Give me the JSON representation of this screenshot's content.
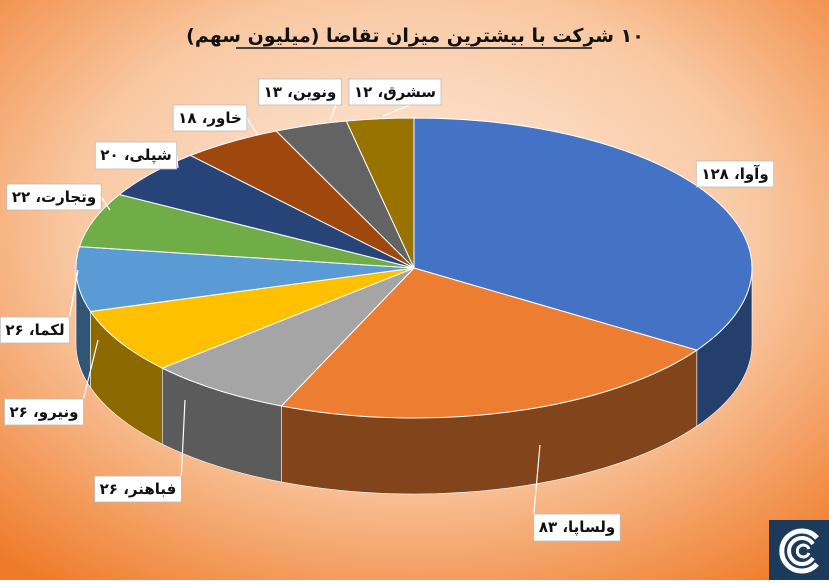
{
  "chart_data": {
    "type": "pie",
    "title": "۱۰ شرکت با بیشترین میزان تقاضا (میلیون سهم)",
    "categories": [
      "وآوا",
      "ولساپا",
      "فباهنر",
      "ونیرو",
      "لکما",
      "وتجارت",
      "شپلی",
      "خاور",
      "ونوین",
      "سشرق"
    ],
    "values": [
      128,
      83,
      26,
      26,
      26,
      22,
      20,
      18,
      13,
      12
    ],
    "value_labels": [
      "۱۲۸",
      "۸۳",
      "۲۶",
      "۲۶",
      "۲۶",
      "۲۲",
      "۲۰",
      "۱۸",
      "۱۳",
      "۱۲"
    ],
    "colors": [
      "#4472C4",
      "#ED7D31",
      "#A5A5A5",
      "#FFC000",
      "#5B9BD5",
      "#70AD47",
      "#264478",
      "#9E480E",
      "#636363",
      "#997300"
    ],
    "legend": "none",
    "data_labels": "outside"
  },
  "background": {
    "inner": "#FBE5D6",
    "outer": "#F07F2E"
  },
  "logo": {
    "name": "brand-logo-icon",
    "color": "#1B3A5C"
  }
}
